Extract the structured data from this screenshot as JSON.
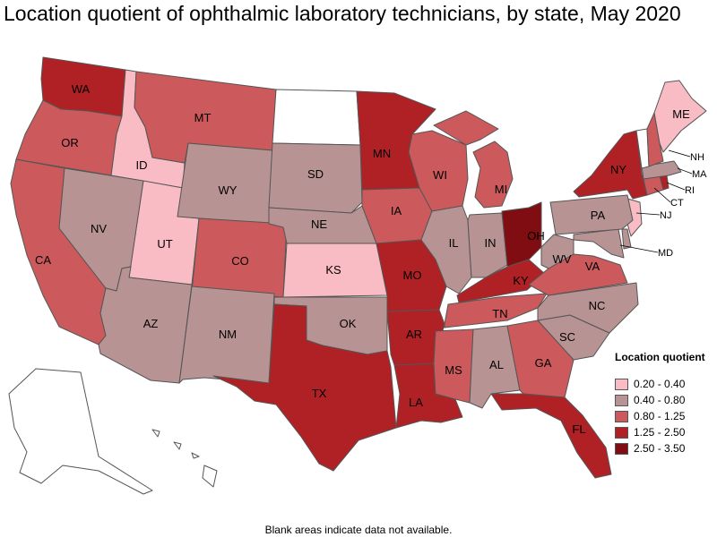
{
  "title": "Location quotient of ophthalmic laboratory technicians, by state, May 2020",
  "footnote": "Blank areas indicate data not available.",
  "legend": {
    "title": "Location quotient",
    "classes": [
      {
        "label": "0.20 - 0.40",
        "color": "#f9bcc4"
      },
      {
        "label": "0.40 - 0.80",
        "color": "#b89393"
      },
      {
        "label": "0.80 - 1.25",
        "color": "#cc5a5c"
      },
      {
        "label": "1.25 - 2.50",
        "color": "#b02125"
      },
      {
        "label": "2.50 - 3.50",
        "color": "#800d12"
      }
    ]
  },
  "no_data_color": "#ffffff",
  "states": {
    "WA": {
      "label": "WA",
      "cls": 3
    },
    "OR": {
      "label": "OR",
      "cls": 2
    },
    "CA": {
      "label": "CA",
      "cls": 2
    },
    "ID": {
      "label": "ID",
      "cls": 0
    },
    "NV": {
      "label": "NV",
      "cls": 1
    },
    "UT": {
      "label": "UT",
      "cls": 0
    },
    "AZ": {
      "label": "AZ",
      "cls": 1
    },
    "MT": {
      "label": "MT",
      "cls": 2
    },
    "WY": {
      "label": "WY",
      "cls": 1
    },
    "CO": {
      "label": "CO",
      "cls": 2
    },
    "NM": {
      "label": "NM",
      "cls": 1
    },
    "ND": {
      "label": "",
      "cls": -1
    },
    "SD": {
      "label": "SD",
      "cls": 1
    },
    "NE": {
      "label": "NE",
      "cls": 1
    },
    "KS": {
      "label": "KS",
      "cls": 0
    },
    "OK": {
      "label": "OK",
      "cls": 1
    },
    "TX": {
      "label": "TX",
      "cls": 3
    },
    "MN": {
      "label": "MN",
      "cls": 3
    },
    "IA": {
      "label": "IA",
      "cls": 2
    },
    "MO": {
      "label": "MO",
      "cls": 3
    },
    "AR": {
      "label": "AR",
      "cls": 3
    },
    "LA": {
      "label": "LA",
      "cls": 3
    },
    "WI": {
      "label": "WI",
      "cls": 2
    },
    "IL": {
      "label": "IL",
      "cls": 1
    },
    "MI": {
      "label": "MI",
      "cls": 2
    },
    "IN": {
      "label": "IN",
      "cls": 1
    },
    "OH": {
      "label": "OH",
      "cls": 4
    },
    "KY": {
      "label": "KY",
      "cls": 3
    },
    "TN": {
      "label": "TN",
      "cls": 2
    },
    "MS": {
      "label": "MS",
      "cls": 2
    },
    "AL": {
      "label": "AL",
      "cls": 1
    },
    "GA": {
      "label": "GA",
      "cls": 2
    },
    "FL": {
      "label": "FL",
      "cls": 3
    },
    "SC": {
      "label": "SC",
      "cls": 1
    },
    "NC": {
      "label": "NC",
      "cls": 1
    },
    "VA": {
      "label": "VA",
      "cls": 2
    },
    "WV": {
      "label": "WV",
      "cls": 1
    },
    "MD": {
      "label": "MD",
      "cls": 1
    },
    "DE": {
      "label": "",
      "cls": 1
    },
    "NJ": {
      "label": "NJ",
      "cls": 0
    },
    "PA": {
      "label": "PA",
      "cls": 1
    },
    "NY": {
      "label": "NY",
      "cls": 3
    },
    "CT": {
      "label": "CT",
      "cls": 2
    },
    "RI": {
      "label": "RI",
      "cls": 3
    },
    "MA": {
      "label": "MA",
      "cls": 1
    },
    "VT": {
      "label": "",
      "cls": -1
    },
    "NH": {
      "label": "NH",
      "cls": 2
    },
    "ME": {
      "label": "ME",
      "cls": 0
    },
    "AK": {
      "label": "",
      "cls": -1
    },
    "HI": {
      "label": "",
      "cls": -1
    }
  }
}
